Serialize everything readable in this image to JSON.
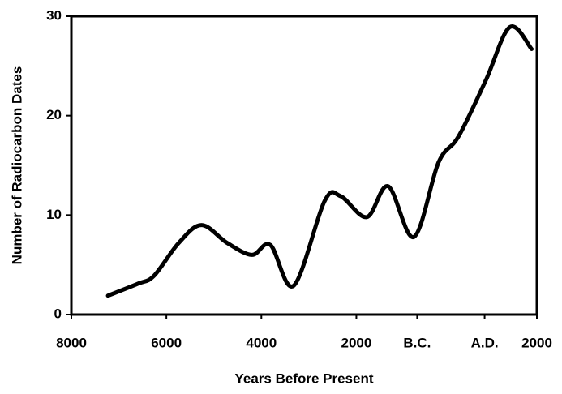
{
  "chart_data": {
    "type": "line",
    "xlabel": "Years Before Present",
    "ylabel": "Number of Radiocarbon Dates",
    "x": [
      7230,
      6600,
      6260,
      5740,
      5260,
      4720,
      4200,
      3810,
      3320,
      2670,
      2330,
      1780,
      1330,
      790,
      270,
      -150,
      -720,
      -1230,
      -1690
    ],
    "series": [
      {
        "color": "#000000",
        "values": [
          1.9,
          3.1,
          3.9,
          7.2,
          9.0,
          7.2,
          6.0,
          7.0,
          2.9,
          11.4,
          11.9,
          9.8,
          12.9,
          7.8,
          15.3,
          17.9,
          23.5,
          28.9,
          26.7
        ]
      }
    ],
    "xlim": [
      8000,
      -1800
    ],
    "xticks": [
      8000,
      6000,
      4000,
      2000,
      {
        "value": 720,
        "label": "B.C."
      },
      {
        "value": -700,
        "label": "A.D."
      },
      {
        "value": -1800,
        "label": "2000"
      }
    ],
    "ylim": [
      0,
      30
    ],
    "yticks": [
      0,
      10,
      20,
      30
    ]
  }
}
